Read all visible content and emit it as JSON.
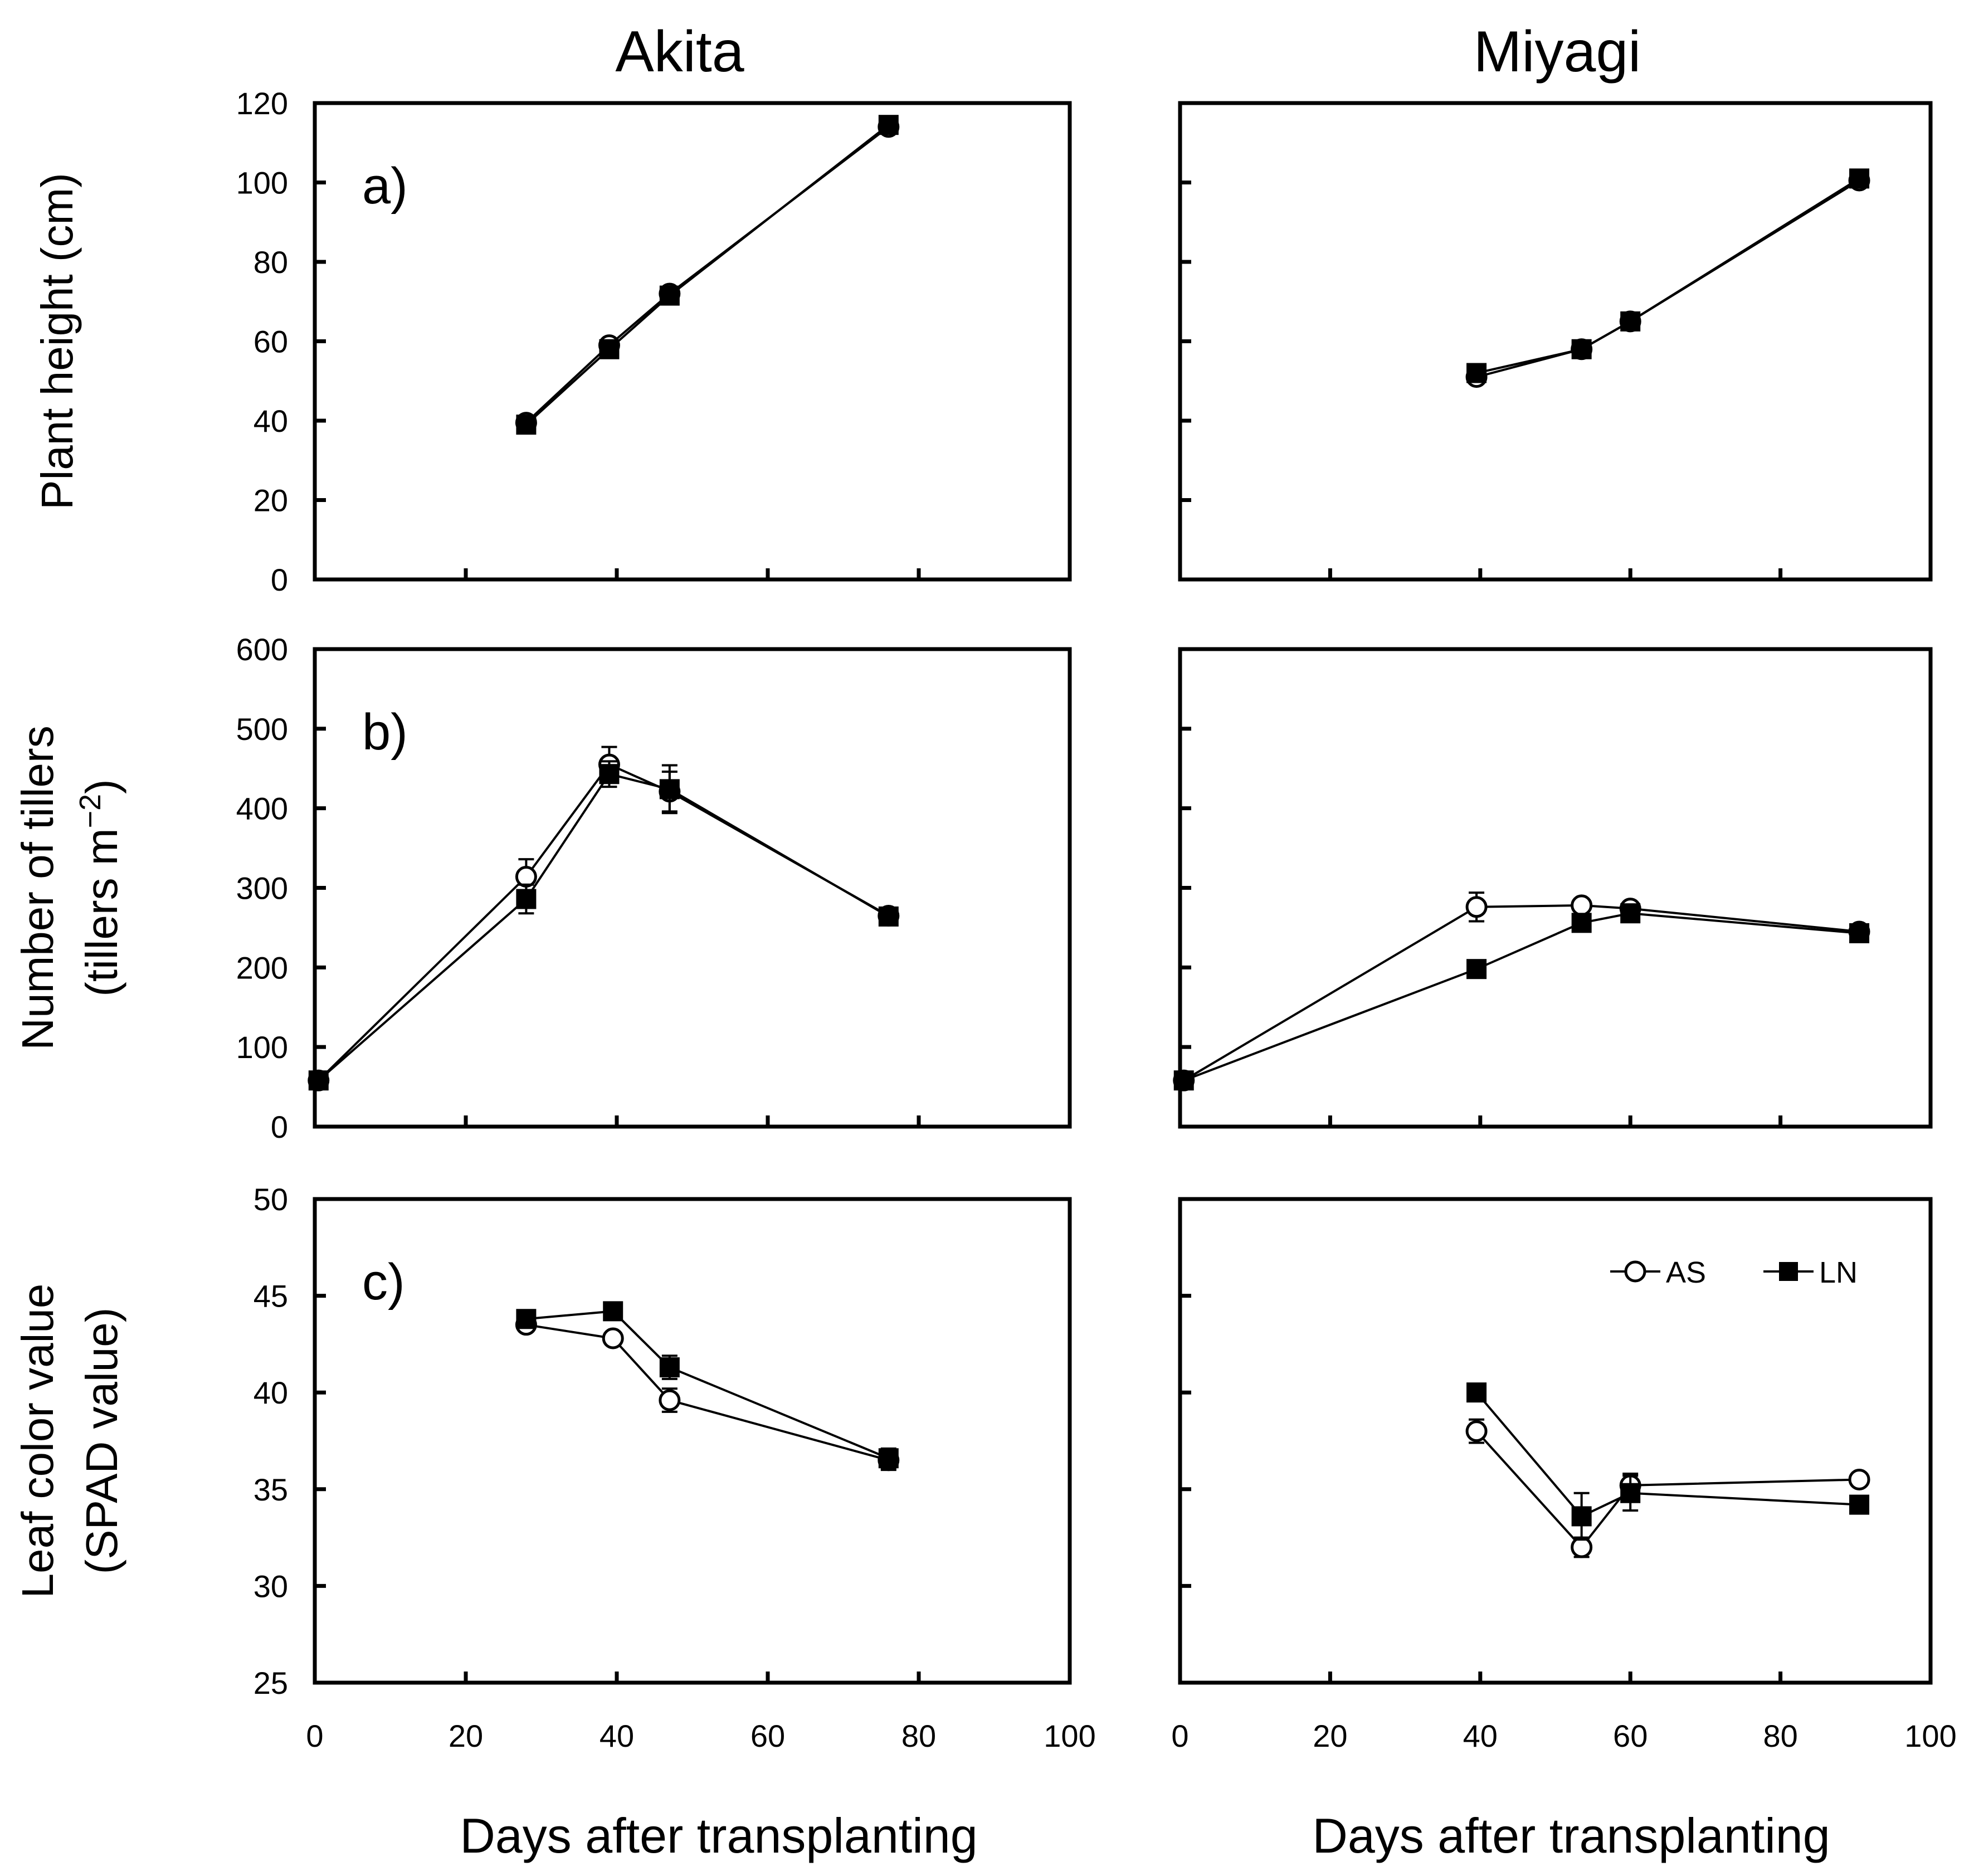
{
  "figure": {
    "column_titles": [
      "Akita",
      "Miyagi"
    ],
    "xlabel": "Days after transplanting"
  },
  "chart_data": [
    {
      "id": "a-akita",
      "panel": "a)",
      "type": "line",
      "location": "Akita",
      "ylabel": "Plant height (cm)",
      "xlim": [
        0,
        100
      ],
      "ylim": [
        0,
        120
      ],
      "xticks": [
        0,
        20,
        40,
        60,
        80,
        100
      ],
      "yticks": [
        0,
        20,
        40,
        60,
        80,
        100,
        120
      ],
      "series": [
        {
          "name": "AS",
          "x": [
            28,
            39,
            47,
            76
          ],
          "y": [
            39.5,
            59,
            72,
            114
          ],
          "err": [
            0,
            0,
            0,
            0
          ]
        },
        {
          "name": "LN",
          "x": [
            28,
            39,
            47,
            76
          ],
          "y": [
            39,
            58,
            71.5,
            114.5
          ],
          "err": [
            0,
            0,
            0,
            0
          ]
        }
      ]
    },
    {
      "id": "a-miyagi",
      "panel": "",
      "type": "line",
      "location": "Miyagi",
      "ylabel": "",
      "xlim": [
        0,
        100
      ],
      "ylim": [
        0,
        120
      ],
      "xticks": [
        0,
        20,
        40,
        60,
        80,
        100
      ],
      "yticks": [
        0,
        20,
        40,
        60,
        80,
        100,
        120
      ],
      "series": [
        {
          "name": "AS",
          "x": [
            39.5,
            53.5,
            60,
            90.5
          ],
          "y": [
            51,
            58,
            65,
            100.5
          ],
          "err": [
            0,
            0,
            0,
            0
          ]
        },
        {
          "name": "LN",
          "x": [
            39.5,
            53.5,
            60,
            90.5
          ],
          "y": [
            52,
            58,
            65,
            101
          ],
          "err": [
            0,
            0,
            0,
            0
          ]
        }
      ]
    },
    {
      "id": "b-akita",
      "panel": "b)",
      "type": "line",
      "location": "Akita",
      "ylabel": "Number of tillers",
      "ylabel2_base": "(tillers m",
      "ylabel2_sup": "−2",
      "ylabel2_end": ")",
      "xlim": [
        0,
        100
      ],
      "ylim": [
        0,
        600
      ],
      "xticks": [
        0,
        20,
        40,
        60,
        80,
        100
      ],
      "yticks": [
        0,
        100,
        200,
        300,
        400,
        500,
        600
      ],
      "series": [
        {
          "name": "AS",
          "x": [
            0.5,
            28,
            39,
            47,
            76
          ],
          "y": [
            58,
            314,
            455,
            421,
            265
          ],
          "err": [
            0,
            22,
            22,
            25,
            10
          ]
        },
        {
          "name": "LN",
          "x": [
            0.5,
            28,
            39,
            47,
            76
          ],
          "y": [
            58,
            286,
            443,
            424,
            264
          ],
          "err": [
            0,
            18,
            16,
            30,
            8
          ]
        }
      ]
    },
    {
      "id": "b-miyagi",
      "panel": "",
      "type": "line",
      "location": "Miyagi",
      "ylabel": "",
      "xlim": [
        0,
        100
      ],
      "ylim": [
        0,
        600
      ],
      "xticks": [
        0,
        20,
        40,
        60,
        80,
        100
      ],
      "yticks": [
        0,
        100,
        200,
        300,
        400,
        500,
        600
      ],
      "series": [
        {
          "name": "AS",
          "x": [
            0.5,
            39.5,
            53.5,
            60,
            90.5
          ],
          "y": [
            58,
            276,
            278,
            274,
            245
          ],
          "err": [
            0,
            18,
            8,
            8,
            6
          ]
        },
        {
          "name": "LN",
          "x": [
            0.5,
            39.5,
            53.5,
            60,
            90.5
          ],
          "y": [
            58,
            198,
            256,
            268,
            243
          ],
          "err": [
            0,
            6,
            6,
            6,
            6
          ]
        }
      ]
    },
    {
      "id": "c-akita",
      "panel": "c)",
      "type": "line",
      "location": "Akita",
      "ylabel": "Leaf color value",
      "ylabel2": "(SPAD value)",
      "xlim": [
        0,
        100
      ],
      "ylim": [
        25,
        50
      ],
      "xticks": [
        0,
        20,
        40,
        60,
        80,
        100
      ],
      "yticks": [
        25,
        30,
        35,
        40,
        45,
        50
      ],
      "series": [
        {
          "name": "AS",
          "x": [
            28,
            39.5,
            47,
            76
          ],
          "y": [
            43.5,
            42.8,
            39.6,
            36.5
          ],
          "err": [
            0.3,
            0.3,
            0.6,
            0.5
          ]
        },
        {
          "name": "LN",
          "x": [
            28,
            39.5,
            47,
            76
          ],
          "y": [
            43.8,
            44.2,
            41.3,
            36.6
          ],
          "err": [
            0.3,
            0.4,
            0.6,
            0.5
          ]
        }
      ]
    },
    {
      "id": "c-miyagi",
      "panel": "",
      "type": "line",
      "location": "Miyagi",
      "ylabel": "",
      "xlim": [
        0,
        100
      ],
      "ylim": [
        25,
        50
      ],
      "xticks": [
        0,
        20,
        40,
        60,
        80,
        100
      ],
      "yticks": [
        25,
        30,
        35,
        40,
        45,
        50
      ],
      "legend": {
        "position": "top-right",
        "entries": [
          "AS",
          "LN"
        ]
      },
      "series": [
        {
          "name": "AS",
          "x": [
            39.5,
            53.5,
            60,
            90.5
          ],
          "y": [
            38,
            32,
            35.2,
            35.5
          ],
          "err": [
            0.6,
            0.5,
            0.6,
            0.3
          ]
        },
        {
          "name": "LN",
          "x": [
            39.5,
            53.5,
            60,
            90.5
          ],
          "y": [
            40,
            33.6,
            34.8,
            34.2
          ],
          "err": [
            0.3,
            1.2,
            0.9,
            0.3
          ]
        }
      ]
    }
  ],
  "colors": {
    "axis": "#000000",
    "line": "#000000",
    "marker_open_fill": "#ffffff",
    "marker_filled": "#000000"
  }
}
